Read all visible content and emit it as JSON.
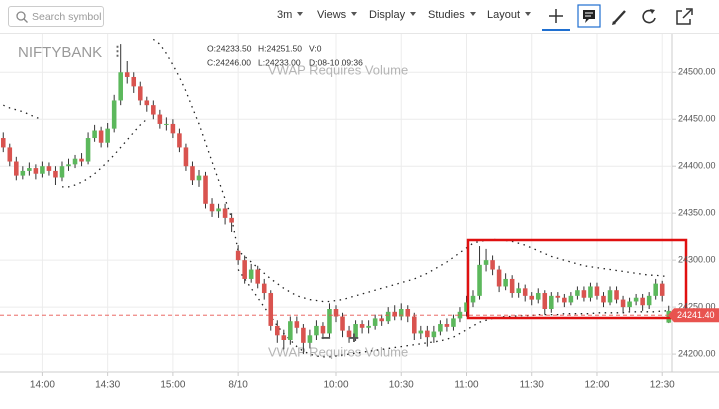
{
  "toolbar": {
    "search_placeholder": "Search symbol",
    "interval": "3m",
    "menus": [
      "Views",
      "Display",
      "Studies",
      "Layout"
    ]
  },
  "chart_data": {
    "type": "candlestick",
    "title": "NIFTYBANK",
    "ohlc_legend": [
      "O:24233.50",
      "H:24251.50",
      "V:0",
      "C:24246.00",
      "L:24233.00",
      "D:08-10 09:36"
    ],
    "annotations": [
      "VWAP Requires Volume",
      "VWAP Requires Volume"
    ],
    "zoom": [
      "−",
      "+"
    ],
    "categories": [
      null,
      null,
      null,
      null,
      null,
      null,
      "14:00",
      null,
      null,
      null,
      null,
      null,
      null,
      null,
      null,
      null,
      "14:30",
      null,
      null,
      null,
      null,
      null,
      null,
      null,
      null,
      null,
      "15:00",
      null,
      null,
      null,
      null,
      null,
      null,
      null,
      null,
      null,
      "8/10",
      null,
      null,
      null,
      null,
      null,
      null,
      null,
      null,
      null,
      null,
      null,
      null,
      null,
      null,
      "10:00",
      null,
      null,
      null,
      null,
      null,
      null,
      null,
      null,
      null,
      "10:30",
      null,
      null,
      null,
      null,
      null,
      null,
      null,
      null,
      null,
      "11:00",
      null,
      null,
      null,
      null,
      null,
      null,
      null,
      null,
      null,
      "11:30",
      null,
      null,
      null,
      null,
      null,
      null,
      null,
      null,
      null,
      "12:00",
      null,
      null,
      null,
      null,
      null,
      null,
      null,
      null,
      null,
      "12:30",
      null
    ],
    "open": [
      24430,
      24420,
      24405,
      24390,
      24395,
      24398,
      24392,
      24400,
      24395,
      24388,
      24400,
      24402,
      24408,
      24405,
      24430,
      24438,
      24425,
      24440,
      24470,
      24500,
      24495,
      24485,
      24470,
      24465,
      24455,
      24445,
      24445,
      24435,
      24420,
      24400,
      24385,
      24390,
      24360,
      24352,
      24355,
      24345,
      24310,
      24300,
      24280,
      24290,
      24275,
      24265,
      24230,
      24220,
      24215,
      24235,
      24228,
      24212,
      24220,
      24230,
      24222,
      24248,
      24240,
      24225,
      24218,
      24232,
      24228,
      24230,
      24238,
      24235,
      24245,
      24240,
      24248,
      24240,
      24222,
      24225,
      24218,
      24224,
      24232,
      24229,
      24238,
      24245,
      24255,
      24262,
      24295,
      24300,
      24290,
      24272,
      24280,
      24265,
      24270,
      24262,
      24258,
      24265,
      24248,
      24262,
      24260,
      24255,
      24262,
      24268,
      24260,
      24272,
      24262,
      24255,
      24268,
      24258,
      24250,
      24256,
      24260,
      24252,
      24262,
      24275,
      24233.5
    ],
    "high": [
      24436,
      24424,
      24410,
      24400,
      24404,
      24402,
      24405,
      24404,
      24400,
      24405,
      24408,
      24412,
      24414,
      24436,
      24444,
      24442,
      24446,
      24476,
      24530,
      24512,
      24500,
      24490,
      24474,
      24470,
      24460,
      24452,
      24450,
      24440,
      24424,
      24405,
      24396,
      24394,
      24366,
      24360,
      24360,
      24350,
      24316,
      24305,
      24296,
      24294,
      24280,
      24268,
      24236,
      24226,
      24240,
      24240,
      24232,
      24226,
      24236,
      24234,
      24254,
      24252,
      24244,
      24230,
      24236,
      24236,
      24236,
      24242,
      24242,
      24250,
      24252,
      24254,
      24252,
      24244,
      24230,
      24230,
      24230,
      24236,
      24238,
      24242,
      24250,
      24262,
      24268,
      24315,
      24312,
      24305,
      24294,
      24286,
      24284,
      24276,
      24274,
      24266,
      24270,
      24268,
      24266,
      24266,
      24264,
      24266,
      24272,
      24272,
      24276,
      24276,
      24266,
      24272,
      24272,
      24262,
      24260,
      24264,
      24264,
      24266,
      24280,
      24278,
      24251.5
    ],
    "low": [
      24415,
      24400,
      24385,
      24386,
      24390,
      24386,
      24388,
      24390,
      24380,
      24384,
      24395,
      24398,
      24400,
      24402,
      24426,
      24420,
      24420,
      24436,
      24465,
      24488,
      24478,
      24465,
      24458,
      24450,
      24440,
      24438,
      24430,
      24415,
      24395,
      24380,
      24378,
      24355,
      24346,
      24345,
      24338,
      24330,
      24295,
      24275,
      24276,
      24270,
      24258,
      24225,
      24212,
      24205,
      24210,
      24222,
      24200,
      24206,
      24215,
      24216,
      24218,
      24234,
      24218,
      24212,
      24214,
      24222,
      24222,
      24226,
      24230,
      24232,
      24236,
      24236,
      24234,
      24215,
      24216,
      24208,
      24212,
      24220,
      24224,
      24225,
      24234,
      24240,
      24250,
      24258,
      24288,
      24284,
      24266,
      24268,
      24260,
      24260,
      24256,
      24252,
      24254,
      24242,
      24244,
      24255,
      24250,
      24252,
      24258,
      24256,
      24256,
      24258,
      24250,
      24252,
      24254,
      24244,
      24246,
      24252,
      24246,
      24248,
      24258,
      24256,
      24233
    ],
    "close": [
      24420,
      24405,
      24390,
      24395,
      24398,
      24392,
      24400,
      24395,
      24388,
      24400,
      24402,
      24408,
      24405,
      24430,
      24438,
      24425,
      24440,
      24470,
      24500,
      24495,
      24485,
      24470,
      24465,
      24455,
      24445,
      24445,
      24435,
      24420,
      24400,
      24385,
      24390,
      24360,
      24352,
      24355,
      24345,
      24340,
      24300,
      24280,
      24290,
      24275,
      24265,
      24230,
      24220,
      24215,
      24235,
      24228,
      24212,
      24220,
      24230,
      24222,
      24248,
      24240,
      24225,
      24218,
      24232,
      24228,
      24230,
      24238,
      24235,
      24245,
      24240,
      24248,
      24240,
      24222,
      24225,
      24218,
      24224,
      24232,
      24229,
      24238,
      24245,
      24255,
      24262,
      24295,
      24300,
      24290,
      24272,
      24280,
      24265,
      24270,
      24262,
      24258,
      24265,
      24248,
      24262,
      24260,
      24255,
      24262,
      24268,
      24260,
      24272,
      24262,
      24255,
      24268,
      24258,
      24250,
      24256,
      24260,
      24252,
      24262,
      24275,
      24262,
      24246
    ],
    "up_color": "#5cb85c",
    "down_color": "#d9534f",
    "overlays": [
      {
        "color": "#222",
        "values": [
          24465,
          24462,
          24460,
          24458,
          24455,
          24452,
          24450,
          null,
          null,
          null,
          null,
          null,
          null,
          null,
          null,
          null,
          null,
          null,
          null,
          null,
          null,
          null,
          null,
          24535,
          24530,
          24520,
          24508,
          24495,
          24480,
          24462,
          24445,
          24425,
          24405,
          24385,
          24365,
          24345,
          24310,
          24304,
          24298,
          24292,
          24286,
          24280,
          24275,
          24270,
          24266,
          24262,
          24260,
          24258,
          24257,
          24256,
          24256,
          24257,
          24258,
          24260,
          24262,
          24264,
          24266,
          24268,
          24270,
          24272,
          24274,
          24276,
          24278,
          24280,
          24283,
          24286,
          24290,
          24294,
          24298,
          24303,
          24308,
          24313,
          24318,
          24320,
          24321,
          24322,
          24322,
          24321,
          24320,
          24318,
          24316,
          24313,
          24310,
          24307,
          24304,
          24302,
          24300,
          24298,
          24296,
          24294,
          24293,
          24292,
          24291,
          24290,
          24289,
          24288,
          24287,
          24286,
          24285,
          24284,
          24284,
          24283,
          24283
        ]
      },
      {
        "color": "#222",
        "values": [
          null,
          null,
          null,
          null,
          null,
          null,
          null,
          null,
          null,
          24378,
          24378,
          24380,
          24383,
          24387,
          24392,
          24398,
          24405,
          24412,
          24420,
          24428,
          24436,
          24444,
          24450,
          null,
          null,
          null,
          null,
          null,
          null,
          null,
          null,
          null,
          null,
          null,
          null,
          null,
          24290,
          24280,
          24270,
          24260,
          24250,
          24240,
          24230,
          24222,
          24215,
          24208,
          24203,
          24200,
          24198,
          24197,
          24197,
          24198,
          24199,
          24200,
          24201,
          24202,
          24203,
          24204,
          24205,
          24206,
          24207,
          24208,
          24209,
          24210,
          24211,
          24212,
          24213,
          24214,
          24216,
          24218,
          24222,
          24226,
          24230,
          24234,
          24236,
          24238,
          24239,
          24240,
          24240,
          24241,
          24241,
          24241,
          24242,
          24242,
          24242,
          24242,
          24243,
          24243,
          24243,
          24243,
          24243,
          24244,
          24244,
          24244,
          24244,
          24244,
          24245,
          24245,
          24245,
          24245,
          24245,
          24246,
          24246
        ]
      }
    ],
    "last_price": {
      "value": 24241.4,
      "label": "24241.40",
      "color": "#e8534f"
    },
    "ylim": [
      24182,
      24545
    ],
    "yticks": [
      {
        "value": 24200,
        "label": "24200.00"
      },
      {
        "value": 24250,
        "label": "24250.00"
      },
      {
        "value": 24300,
        "label": "24300.00"
      },
      {
        "value": 24350,
        "label": "24350.00"
      },
      {
        "value": 24400,
        "label": "24400.00"
      },
      {
        "value": 24450,
        "label": "24450.00"
      },
      {
        "value": 24500,
        "label": "24500.00"
      }
    ],
    "grid": true
  }
}
